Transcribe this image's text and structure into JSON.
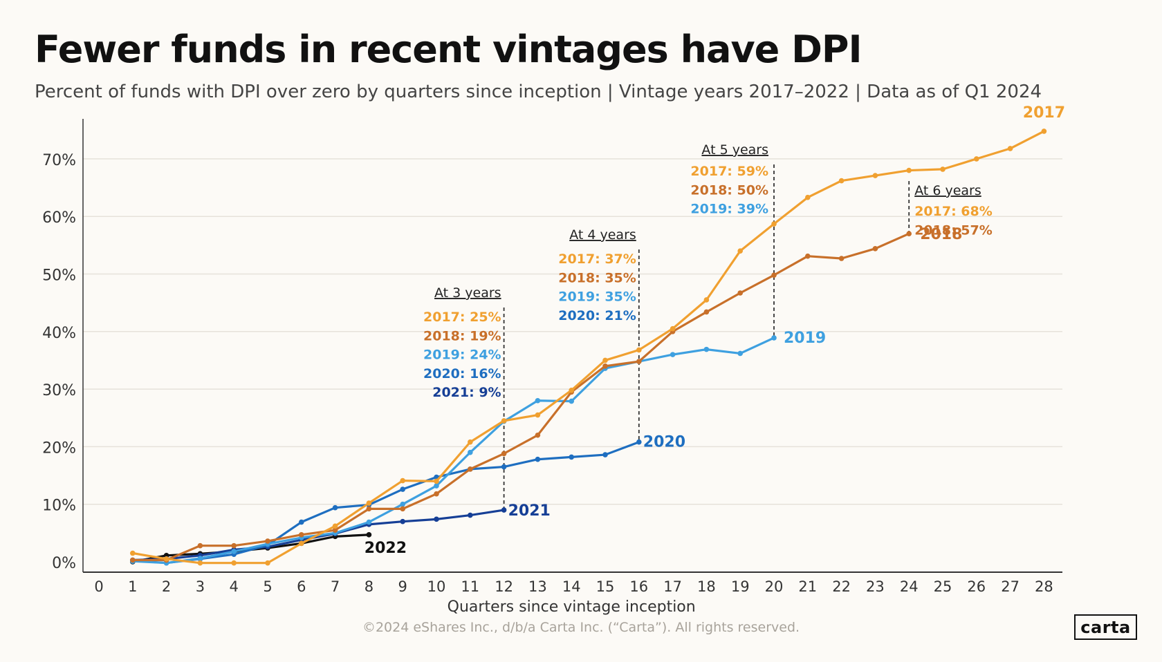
{
  "header": {
    "title": "Fewer funds in recent vintages have DPI",
    "subtitle": "Percent of funds with DPI over zero by quarters since inception | Vintage years 2017–2022 | Data as of Q1 2024"
  },
  "footer": {
    "copyright": "©2024 eShares Inc., d/b/a Carta Inc. (“Carta”). All rights reserved.",
    "logo_text": "carta"
  },
  "colors": {
    "2017": "#f0a030",
    "2018": "#c8702a",
    "2019": "#3ea0e0",
    "2020": "#1e6ec0",
    "2021": "#163f96",
    "2022": "#111111",
    "grid": "#e6e2da",
    "axis": "#333333",
    "annotation_line": "#333333"
  },
  "chart_data": {
    "type": "line",
    "xlabel": "Quarters since vintage inception",
    "ylabel": "",
    "x_ticks": [
      0,
      1,
      2,
      3,
      4,
      5,
      6,
      7,
      8,
      9,
      10,
      11,
      12,
      13,
      14,
      15,
      16,
      17,
      18,
      19,
      20,
      21,
      22,
      23,
      24,
      25,
      26,
      27,
      28
    ],
    "y_ticks": [
      0,
      10,
      20,
      30,
      40,
      50,
      60,
      70
    ],
    "y_tick_labels": [
      "0%",
      "10%",
      "20%",
      "30%",
      "40%",
      "50%",
      "60%",
      "70%"
    ],
    "xlim": [
      0,
      28
    ],
    "ylim": [
      -1.5,
      78
    ],
    "grid": "horizontal",
    "series": [
      {
        "name": "2017",
        "x": [
          1,
          2,
          3,
          4,
          5,
          6,
          7,
          8,
          9,
          10,
          11,
          12,
          13,
          14,
          15,
          16,
          17,
          18,
          19,
          20,
          21,
          22,
          23,
          24,
          25,
          26,
          27,
          28
        ],
        "values": [
          1.5,
          0.5,
          -0.2,
          -0.2,
          -0.2,
          3.2,
          6.2,
          10.2,
          14.1,
          14.0,
          20.8,
          24.5,
          25.5,
          29.8,
          35.0,
          36.8,
          40.5,
          45.5,
          54.0,
          58.7,
          63.3,
          66.2,
          67.1,
          68.0,
          68.2,
          70.0,
          71.8,
          74.8
        ]
      },
      {
        "name": "2018",
        "x": [
          1,
          2,
          3,
          4,
          5,
          6,
          7,
          8,
          9,
          10,
          11,
          12,
          13,
          14,
          15,
          16,
          17,
          18,
          19,
          20,
          21,
          22,
          23,
          24
        ],
        "values": [
          0.3,
          0.3,
          2.8,
          2.8,
          3.6,
          4.7,
          5.5,
          9.2,
          9.2,
          11.8,
          16.1,
          18.8,
          22.0,
          29.5,
          34.0,
          34.8,
          40.0,
          43.4,
          46.7,
          49.8,
          53.1,
          52.7,
          54.4,
          57.0
        ]
      },
      {
        "name": "2019",
        "x": [
          1,
          2,
          3,
          4,
          5,
          6,
          7,
          8,
          9,
          10,
          11,
          12,
          13,
          14,
          15,
          16,
          17,
          18,
          19,
          20
        ],
        "values": [
          0.1,
          -0.2,
          0.6,
          1.8,
          3.1,
          4.2,
          5.0,
          6.9,
          10.0,
          13.2,
          19.0,
          24.4,
          28.0,
          27.9,
          33.6,
          34.8,
          36.0,
          36.9,
          36.2,
          38.9
        ]
      },
      {
        "name": "2020",
        "x": [
          1,
          2,
          3,
          4,
          5,
          6,
          7,
          8,
          9,
          10,
          11,
          12,
          13,
          14,
          15,
          16
        ],
        "values": [
          0.2,
          -0.2,
          0.5,
          1.3,
          2.9,
          6.9,
          9.4,
          9.9,
          12.6,
          14.7,
          16.1,
          16.5,
          17.8,
          18.2,
          18.6,
          20.8
        ]
      },
      {
        "name": "2021",
        "x": [
          1,
          2,
          3,
          4,
          5,
          6,
          7,
          8,
          9,
          10,
          11,
          12
        ],
        "values": [
          0.3,
          0.5,
          1.1,
          2.1,
          2.6,
          3.8,
          4.9,
          6.5,
          7.0,
          7.4,
          8.1,
          9.0
        ]
      },
      {
        "name": "2022",
        "x": [
          1,
          2,
          3,
          4,
          5,
          6,
          7,
          8
        ],
        "values": [
          0.0,
          1.1,
          1.4,
          1.8,
          2.4,
          3.2,
          4.4,
          4.7
        ]
      }
    ],
    "annotations": [
      {
        "x": 12,
        "title": "At 3 years",
        "lines": [
          {
            "series": "2017",
            "text": "2017: 25%"
          },
          {
            "series": "2018",
            "text": "2018: 19%"
          },
          {
            "series": "2019",
            "text": "2019: 24%"
          },
          {
            "series": "2020",
            "text": "2020: 16%"
          },
          {
            "series": "2021",
            "text": "2021: 9%"
          }
        ]
      },
      {
        "x": 16,
        "title": "At 4 years",
        "lines": [
          {
            "series": "2017",
            "text": "2017: 37%"
          },
          {
            "series": "2018",
            "text": "2018: 35%"
          },
          {
            "series": "2019",
            "text": "2019: 35%"
          },
          {
            "series": "2020",
            "text": "2020: 21%"
          }
        ]
      },
      {
        "x": 20,
        "title": "At 5 years",
        "lines": [
          {
            "series": "2017",
            "text": "2017: 59%"
          },
          {
            "series": "2018",
            "text": "2018: 50%"
          },
          {
            "series": "2019",
            "text": "2019: 39%"
          }
        ]
      },
      {
        "x": 24,
        "title": "At 6 years",
        "lines": [
          {
            "series": "2017",
            "text": "2017: 68%"
          },
          {
            "series": "2018",
            "text": "2018: 57%"
          }
        ]
      }
    ]
  }
}
